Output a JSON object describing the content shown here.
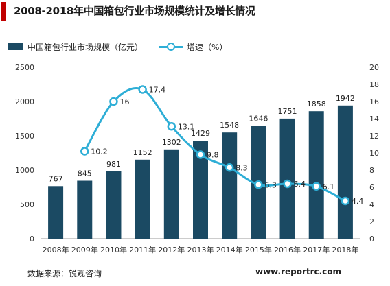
{
  "title": "2008-2018年中国箱包行业市场规模统计及增长情况",
  "legend": {
    "bar_label": "中国箱包行业市场规模（亿元）",
    "line_label": "增速（%）"
  },
  "source": "数据来源：锐观咨询",
  "website": "www.reportrc.com",
  "colors": {
    "accent": "#c00000",
    "bar": "#1b4a63",
    "line": "#2eaed6"
  },
  "chart_data": {
    "type": "bar",
    "categories": [
      "2008年",
      "2009年",
      "2010年",
      "2011年",
      "2012年",
      "2013年",
      "2014年",
      "2015年",
      "2016年",
      "2017年",
      "2018年"
    ],
    "series": [
      {
        "name": "中国箱包行业市场规模（亿元）",
        "type": "bar",
        "axis": "left",
        "values": [
          767,
          845,
          981,
          1152,
          1302,
          1429,
          1548,
          1646,
          1751,
          1858,
          1942
        ],
        "labels": [
          "767",
          "845",
          "981",
          "1152",
          "1302",
          "1429",
          "1548",
          "1646",
          "1751",
          "1858",
          "1942"
        ]
      },
      {
        "name": "增速（%）",
        "type": "line",
        "axis": "right",
        "values": [
          null,
          10.2,
          16,
          17.4,
          13.1,
          9.8,
          8.3,
          6.3,
          6.4,
          6.1,
          4.4
        ],
        "labels": [
          "",
          "10.2",
          "16",
          "17.4",
          "13.1",
          "9.8",
          "8.3",
          "6.3",
          "6.4",
          "6.1",
          "4.4"
        ]
      }
    ],
    "ylim_left": [
      0,
      2500
    ],
    "yticks_left": [
      "0",
      "500",
      "1000",
      "1500",
      "2000",
      "2500"
    ],
    "ylim_right": [
      0,
      20
    ],
    "yticks_right": [
      "0",
      "2",
      "4",
      "6",
      "8",
      "10",
      "12",
      "14",
      "16",
      "18",
      "20"
    ],
    "grid": false
  }
}
